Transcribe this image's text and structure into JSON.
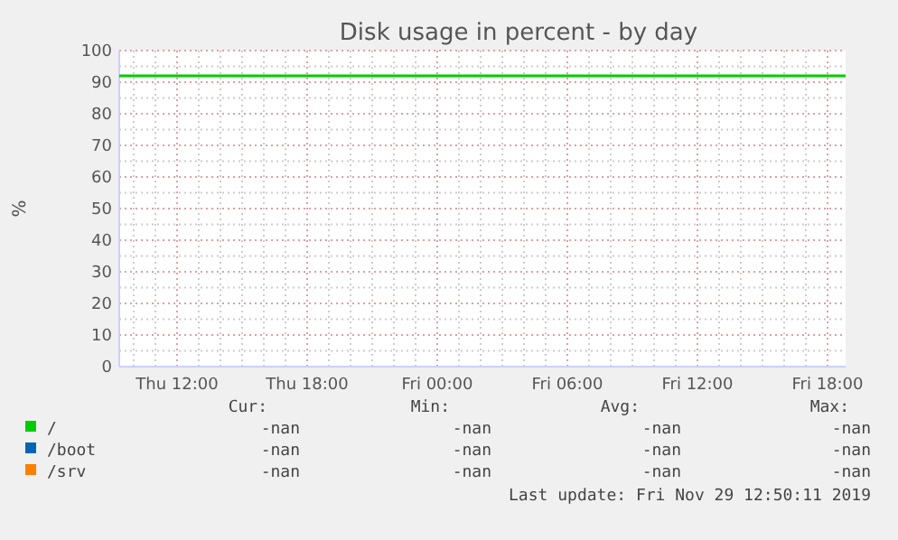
{
  "chart_data": {
    "type": "line",
    "title": "Disk usage in percent - by day",
    "ylabel": "%",
    "xlim": [
      "2019-11-28T09:20",
      "2019-11-29T18:50"
    ],
    "xticks": [
      {
        "value": "2019-11-28T12:00",
        "label": "Thu 12:00"
      },
      {
        "value": "2019-11-28T18:00",
        "label": "Thu 18:00"
      },
      {
        "value": "2019-11-29T00:00",
        "label": "Fri 00:00"
      },
      {
        "value": "2019-11-29T06:00",
        "label": "Fri 06:00"
      },
      {
        "value": "2019-11-29T12:00",
        "label": "Fri 12:00"
      },
      {
        "value": "2019-11-29T18:00",
        "label": "Fri 18:00"
      }
    ],
    "ylim": [
      0,
      100
    ],
    "yticks": [
      0,
      10,
      20,
      30,
      40,
      50,
      60,
      70,
      80,
      90,
      100
    ],
    "x": [
      "2019-11-28T09:20",
      "2019-11-29T18:50"
    ],
    "series": [
      {
        "name": "/",
        "color": "#00cc00",
        "values": [
          92,
          92
        ]
      },
      {
        "name": "/boot",
        "color": "#0066b3",
        "values": [
          null,
          null
        ]
      },
      {
        "name": "/srv",
        "color": "#ff8000",
        "values": [
          null,
          null
        ]
      }
    ],
    "grid": true,
    "legend": "bottom left",
    "annotations": [
      "Cur:",
      "Min:",
      "Avg:",
      "Max:",
      "-nan",
      "-nan",
      "-nan",
      "-nan",
      "-nan",
      "-nan",
      "-nan",
      "-nan",
      "-nan",
      "-nan",
      "-nan",
      "-nan",
      "Last update: Fri Nov 29 12:50:11 2019"
    ]
  }
}
